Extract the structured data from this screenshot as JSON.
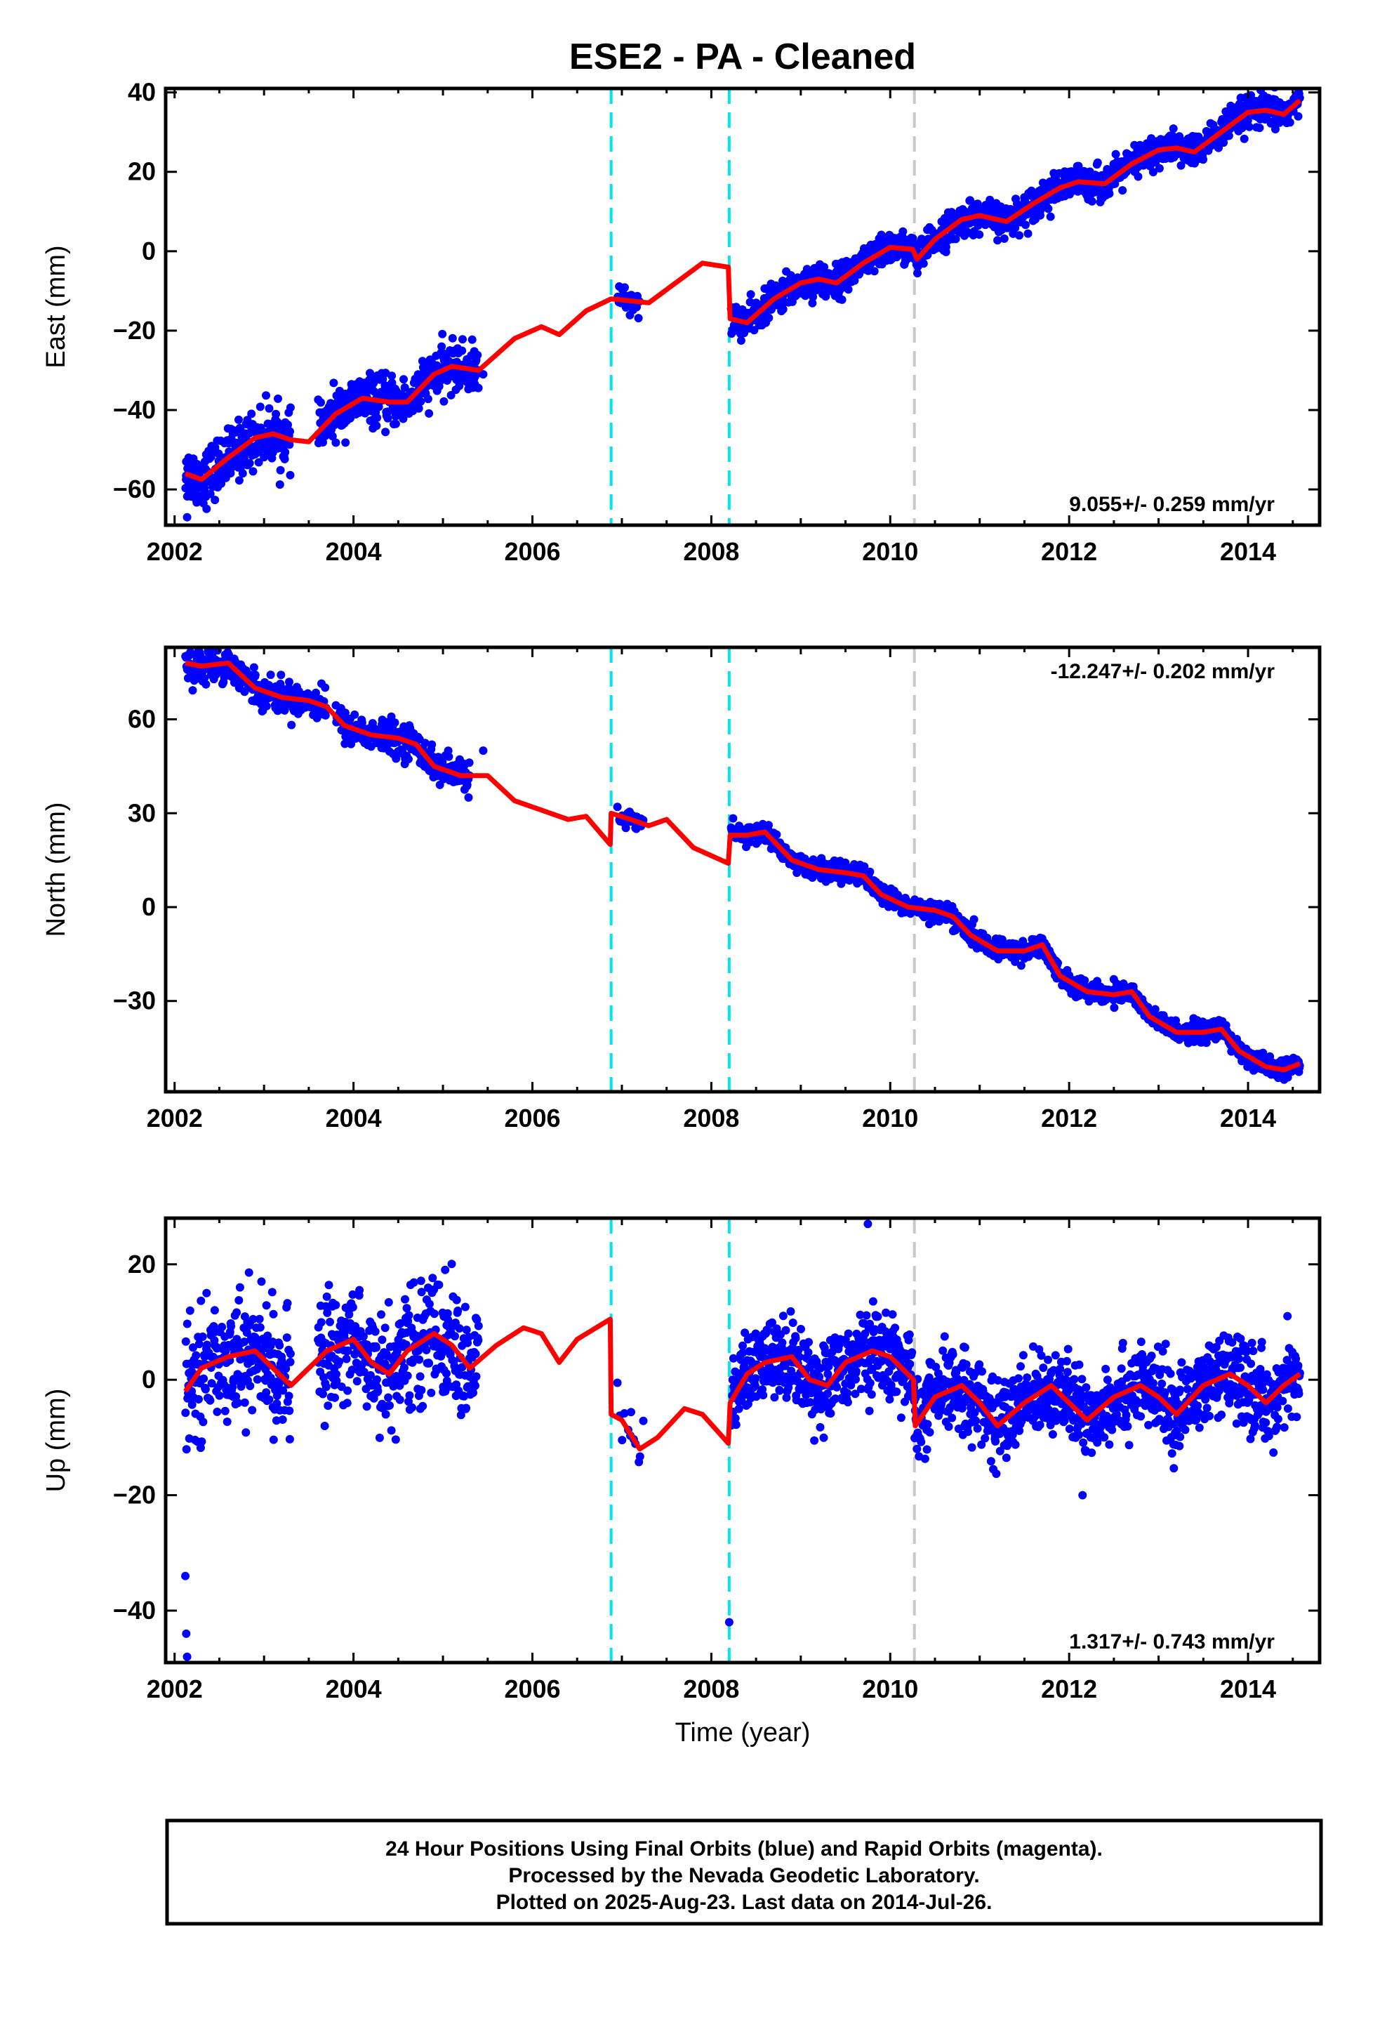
{
  "title": "ESE2  - PA - Cleaned",
  "footer": [
    "24 Hour Positions Using Final Orbits (blue) and Rapid Orbits (magenta).",
    "Processed by the Nevada Geodetic Laboratory.",
    "Plotted on 2025-Aug-23. Last data on 2014-Jul-26."
  ],
  "colors": {
    "data": "#0000ff",
    "fit": "#ff0000",
    "equipment_change": "#00e5ee",
    "other_event": "#c8c8c8"
  },
  "chart_data": [
    {
      "type": "scatter",
      "panel": "east",
      "ylabel": "East (mm)",
      "xlabel": "",
      "xlim": [
        2001.9,
        2014.8
      ],
      "ylim": [
        -69,
        41
      ],
      "xticks": [
        2002,
        2004,
        2006,
        2008,
        2010,
        2012,
        2014
      ],
      "yticks": [
        -60,
        -40,
        -20,
        0,
        20,
        40
      ],
      "rate_text": "9.055+/- 0.259 mm/yr",
      "rate_position": "bottom-right",
      "event_lines": [
        {
          "x": 2006.88,
          "kind": "equipment_change"
        },
        {
          "x": 2008.2,
          "kind": "equipment_change"
        },
        {
          "x": 2010.27,
          "kind": "other_event"
        }
      ],
      "trend": [
        [
          2002.12,
          -56
        ],
        [
          2002.3,
          -57.5
        ],
        [
          2002.6,
          -52
        ],
        [
          2002.9,
          -47
        ],
        [
          2003.1,
          -46
        ],
        [
          2003.3,
          -47.5
        ],
        [
          2003.5,
          -48
        ],
        [
          2003.8,
          -41
        ],
        [
          2004.1,
          -37
        ],
        [
          2004.4,
          -38
        ],
        [
          2004.6,
          -38
        ],
        [
          2004.9,
          -31
        ],
        [
          2005.1,
          -29
        ],
        [
          2005.4,
          -30
        ],
        [
          2005.8,
          -22
        ],
        [
          2006.1,
          -19
        ],
        [
          2006.3,
          -21
        ],
        [
          2006.6,
          -15
        ],
        [
          2006.88,
          -12
        ],
        [
          2007.1,
          -12.5
        ],
        [
          2007.3,
          -13
        ],
        [
          2007.6,
          -8
        ],
        [
          2007.9,
          -3
        ],
        [
          2008.19,
          -4
        ],
        [
          2008.21,
          -17
        ],
        [
          2008.4,
          -18
        ],
        [
          2008.7,
          -12
        ],
        [
          2009.0,
          -8
        ],
        [
          2009.2,
          -7
        ],
        [
          2009.4,
          -8
        ],
        [
          2009.7,
          -3
        ],
        [
          2010.0,
          1
        ],
        [
          2010.25,
          0.5
        ],
        [
          2010.3,
          -2
        ],
        [
          2010.5,
          3
        ],
        [
          2010.8,
          8
        ],
        [
          2011.0,
          9
        ],
        [
          2011.3,
          7.5
        ],
        [
          2011.6,
          12
        ],
        [
          2011.9,
          16
        ],
        [
          2012.1,
          17.5
        ],
        [
          2012.4,
          17
        ],
        [
          2012.7,
          22
        ],
        [
          2013.0,
          25.5
        ],
        [
          2013.2,
          26
        ],
        [
          2013.4,
          25
        ],
        [
          2013.7,
          30
        ],
        [
          2014.0,
          35
        ],
        [
          2014.2,
          35.5
        ],
        [
          2014.4,
          34.5
        ],
        [
          2014.58,
          38
        ]
      ],
      "observation_spans": [
        {
          "x": [
            2002.12,
            2003.3
          ],
          "scatter": 3.5,
          "count": 260
        },
        {
          "x": [
            2003.6,
            2005.4
          ],
          "scatter": 3.0,
          "count": 380
        },
        {
          "x": [
            2006.95,
            2007.2
          ],
          "scatter": 2.0,
          "count": 25
        },
        {
          "x": [
            2008.22,
            2014.58
          ],
          "scatter": 2.0,
          "count": 1500
        }
      ],
      "outliers": [
        [
          2002.14,
          -67
        ],
        [
          2002.13,
          -53
        ],
        [
          2005.45,
          -31
        ]
      ]
    },
    {
      "type": "scatter",
      "panel": "north",
      "ylabel": "North (mm)",
      "xlabel": "",
      "xlim": [
        2001.9,
        2014.8
      ],
      "ylim": [
        -59,
        83
      ],
      "xticks": [
        2002,
        2004,
        2006,
        2008,
        2010,
        2012,
        2014
      ],
      "yticks": [
        -30,
        0,
        30,
        60
      ],
      "rate_text": "-12.247+/- 0.202 mm/yr",
      "rate_position": "top-right",
      "event_lines": [
        {
          "x": 2006.88,
          "kind": "equipment_change"
        },
        {
          "x": 2008.2,
          "kind": "equipment_change"
        },
        {
          "x": 2010.27,
          "kind": "other_event"
        }
      ],
      "trend": [
        [
          2002.12,
          78
        ],
        [
          2002.3,
          77
        ],
        [
          2002.6,
          78
        ],
        [
          2002.9,
          70
        ],
        [
          2003.2,
          67
        ],
        [
          2003.5,
          66
        ],
        [
          2003.7,
          64
        ],
        [
          2003.9,
          58
        ],
        [
          2004.2,
          55
        ],
        [
          2004.5,
          54
        ],
        [
          2004.7,
          52
        ],
        [
          2004.9,
          45
        ],
        [
          2005.2,
          42
        ],
        [
          2005.5,
          42
        ],
        [
          2005.8,
          34
        ],
        [
          2006.1,
          31
        ],
        [
          2006.4,
          28
        ],
        [
          2006.6,
          29
        ],
        [
          2006.87,
          20
        ],
        [
          2006.88,
          30
        ],
        [
          2007.1,
          28
        ],
        [
          2007.3,
          26
        ],
        [
          2007.5,
          28
        ],
        [
          2007.8,
          19
        ],
        [
          2008.19,
          14
        ],
        [
          2008.21,
          23
        ],
        [
          2008.4,
          23
        ],
        [
          2008.6,
          24
        ],
        [
          2008.9,
          15
        ],
        [
          2009.2,
          12
        ],
        [
          2009.5,
          11
        ],
        [
          2009.7,
          10
        ],
        [
          2009.9,
          4
        ],
        [
          2010.2,
          0
        ],
        [
          2010.5,
          -1
        ],
        [
          2010.7,
          -3
        ],
        [
          2010.9,
          -9
        ],
        [
          2011.2,
          -14
        ],
        [
          2011.5,
          -14
        ],
        [
          2011.7,
          -12
        ],
        [
          2011.9,
          -22
        ],
        [
          2012.2,
          -27
        ],
        [
          2012.5,
          -28
        ],
        [
          2012.7,
          -27
        ],
        [
          2012.9,
          -35
        ],
        [
          2013.2,
          -40
        ],
        [
          2013.5,
          -40
        ],
        [
          2013.7,
          -39
        ],
        [
          2013.9,
          -46
        ],
        [
          2014.2,
          -51
        ],
        [
          2014.4,
          -52
        ],
        [
          2014.58,
          -50
        ]
      ],
      "observation_spans": [
        {
          "x": [
            2002.12,
            2003.7
          ],
          "scatter": 2.5,
          "count": 320
        },
        {
          "x": [
            2003.8,
            2005.3
          ],
          "scatter": 2.5,
          "count": 300
        },
        {
          "x": [
            2006.95,
            2007.25
          ],
          "scatter": 1.5,
          "count": 25
        },
        {
          "x": [
            2008.22,
            2014.58
          ],
          "scatter": 1.5,
          "count": 1500
        }
      ],
      "outliers": [
        [
          2005.45,
          50
        ]
      ]
    },
    {
      "type": "scatter",
      "panel": "up",
      "ylabel": "Up (mm)",
      "xlabel": "Time (year)",
      "xlim": [
        2001.9,
        2014.8
      ],
      "ylim": [
        -49,
        28
      ],
      "xticks": [
        2002,
        2004,
        2006,
        2008,
        2010,
        2012,
        2014
      ],
      "yticks": [
        -40,
        -20,
        0,
        20
      ],
      "rate_text": "1.317+/- 0.743 mm/yr",
      "rate_position": "bottom-right",
      "event_lines": [
        {
          "x": 2006.88,
          "kind": "equipment_change"
        },
        {
          "x": 2008.2,
          "kind": "equipment_change"
        },
        {
          "x": 2010.27,
          "kind": "other_event"
        }
      ],
      "trend": [
        [
          2002.12,
          -2
        ],
        [
          2002.3,
          2
        ],
        [
          2002.6,
          4
        ],
        [
          2002.9,
          5
        ],
        [
          2003.1,
          2
        ],
        [
          2003.3,
          -1
        ],
        [
          2003.5,
          2
        ],
        [
          2003.7,
          5
        ],
        [
          2004.0,
          7
        ],
        [
          2004.2,
          3
        ],
        [
          2004.4,
          1
        ],
        [
          2004.6,
          5
        ],
        [
          2004.9,
          8
        ],
        [
          2005.1,
          6
        ],
        [
          2005.3,
          2
        ],
        [
          2005.6,
          6
        ],
        [
          2005.9,
          9
        ],
        [
          2006.1,
          8
        ],
        [
          2006.3,
          3
        ],
        [
          2006.5,
          7
        ],
        [
          2006.87,
          10.5
        ],
        [
          2006.88,
          -6
        ],
        [
          2007.0,
          -7
        ],
        [
          2007.2,
          -12
        ],
        [
          2007.4,
          -10
        ],
        [
          2007.7,
          -5
        ],
        [
          2007.9,
          -6
        ],
        [
          2008.19,
          -11
        ],
        [
          2008.21,
          -4
        ],
        [
          2008.4,
          1
        ],
        [
          2008.6,
          3
        ],
        [
          2008.9,
          4
        ],
        [
          2009.1,
          0
        ],
        [
          2009.3,
          -1
        ],
        [
          2009.5,
          3
        ],
        [
          2009.8,
          5
        ],
        [
          2010.0,
          4
        ],
        [
          2010.26,
          0
        ],
        [
          2010.28,
          -8
        ],
        [
          2010.5,
          -3
        ],
        [
          2010.8,
          -1
        ],
        [
          2011.0,
          -4
        ],
        [
          2011.2,
          -8
        ],
        [
          2011.5,
          -4
        ],
        [
          2011.8,
          -1
        ],
        [
          2012.0,
          -4
        ],
        [
          2012.2,
          -7
        ],
        [
          2012.5,
          -3
        ],
        [
          2012.8,
          -1
        ],
        [
          2013.0,
          -3
        ],
        [
          2013.2,
          -6
        ],
        [
          2013.5,
          -1
        ],
        [
          2013.8,
          1
        ],
        [
          2014.0,
          -1
        ],
        [
          2014.2,
          -4
        ],
        [
          2014.4,
          -1
        ],
        [
          2014.58,
          1
        ]
      ],
      "observation_spans": [
        {
          "x": [
            2002.12,
            2003.3
          ],
          "scatter": 5.0,
          "count": 250
        },
        {
          "x": [
            2003.6,
            2005.4
          ],
          "scatter": 5.0,
          "count": 380
        },
        {
          "x": [
            2006.95,
            2007.25
          ],
          "scatter": 4.0,
          "count": 12
        },
        {
          "x": [
            2008.22,
            2014.58
          ],
          "scatter": 3.5,
          "count": 1500
        }
      ],
      "outliers": [
        [
          2002.12,
          -34
        ],
        [
          2002.13,
          -44
        ],
        [
          2002.14,
          -48
        ],
        [
          2008.2,
          -42
        ],
        [
          2009.75,
          27
        ],
        [
          2012.15,
          -20
        ]
      ]
    }
  ]
}
